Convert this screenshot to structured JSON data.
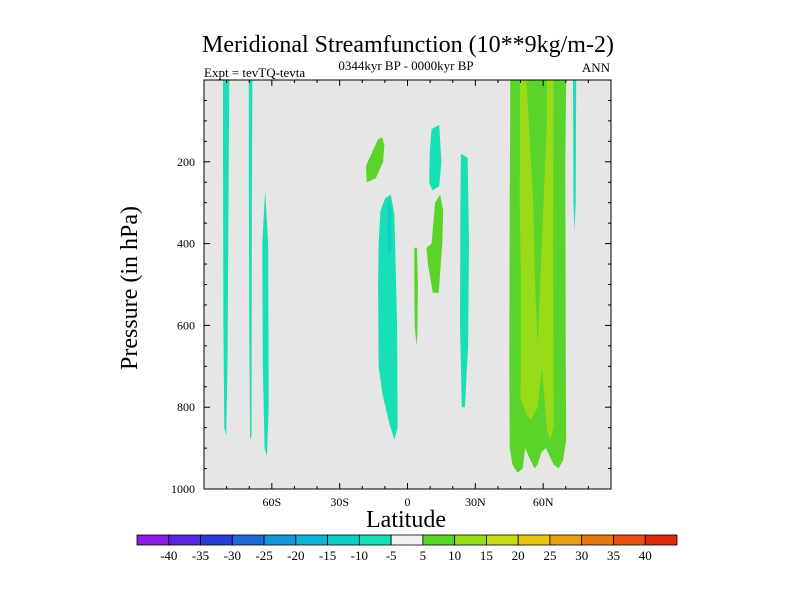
{
  "chart_data": {
    "type": "contour",
    "title": "Meridional Streamfunction (10**9kg/m-2)",
    "subtitle_left": "Expt = tevTQ-tevta",
    "subtitle_center": "0344kyr BP - 0000kyr BP",
    "subtitle_right": "ANN",
    "xlabel": "Latitude",
    "ylabel": "Pressure (in hPa)",
    "xlim": [
      -90,
      90
    ],
    "ylim": [
      1000,
      0
    ],
    "x_ticks": [
      {
        "value": -60,
        "label": "60S"
      },
      {
        "value": -30,
        "label": "30S"
      },
      {
        "value": 0,
        "label": "0"
      },
      {
        "value": 30,
        "label": "30N"
      },
      {
        "value": 60,
        "label": "60N"
      }
    ],
    "y_ticks": [
      {
        "value": 200,
        "label": "200"
      },
      {
        "value": 400,
        "label": "400"
      },
      {
        "value": 600,
        "label": "600"
      },
      {
        "value": 800,
        "label": "800"
      },
      {
        "value": 1000,
        "label": "1000"
      }
    ],
    "background_color": "#e6e6e6",
    "colorbar": {
      "levels": [
        -40,
        -35,
        -30,
        -25,
        -20,
        -15,
        -10,
        -5,
        5,
        10,
        15,
        20,
        25,
        30,
        35,
        40
      ],
      "labels": [
        "-40",
        "-35",
        "-30",
        "-25",
        "-20",
        "-15",
        "-10",
        "-5",
        "5",
        "10",
        "15",
        "20",
        "25",
        "30",
        "35",
        "40"
      ],
      "colors": [
        "#8c1fe6",
        "#5a28dc",
        "#2a3cd6",
        "#1f6ad6",
        "#1594da",
        "#12b4d6",
        "#12ccc6",
        "#17e0b4",
        "#f2f2f2",
        "#5ad42a",
        "#98dc19",
        "#c8dc19",
        "#e6c814",
        "#e6a014",
        "#e67814",
        "#e65014",
        "#dc2a0f"
      ]
    },
    "contour_regions": [
      {
        "name": "cell-65s-west",
        "band": "-10 to -5",
        "color": "#17e0b4",
        "points": [
          [
            -81.6,
            0
          ],
          [
            -78.8,
            0
          ],
          [
            -79,
            140
          ],
          [
            -79.6,
            700
          ],
          [
            -80.2,
            870
          ],
          [
            -81,
            850
          ],
          [
            -81.4,
            600
          ],
          [
            -81.6,
            200
          ]
        ]
      },
      {
        "name": "cell-65s-mid",
        "band": "-10 to -5",
        "color": "#17e0b4",
        "points": [
          [
            -70.2,
            0
          ],
          [
            -68.6,
            0
          ],
          [
            -68.8,
            300
          ],
          [
            -69,
            870
          ],
          [
            -69.6,
            880
          ],
          [
            -70,
            600
          ],
          [
            -70.2,
            200
          ]
        ]
      },
      {
        "name": "cell-60s",
        "band": "-10 to -5",
        "color": "#17e0b4",
        "points": [
          [
            -63,
            270
          ],
          [
            -61.6,
            400
          ],
          [
            -61.4,
            800
          ],
          [
            -62.2,
            920
          ],
          [
            -63.2,
            900
          ],
          [
            -64,
            700
          ],
          [
            -64.2,
            400
          ]
        ]
      },
      {
        "name": "cell-eq-south",
        "band": "-10 to -5",
        "color": "#17e0b4",
        "points": [
          [
            -10,
            290
          ],
          [
            -7.4,
            280
          ],
          [
            -5.8,
            330
          ],
          [
            -4.6,
            600
          ],
          [
            -4.4,
            850
          ],
          [
            -5.8,
            880
          ],
          [
            -8,
            840
          ],
          [
            -11,
            770
          ],
          [
            -12.8,
            700
          ],
          [
            -13,
            500
          ],
          [
            -12.8,
            400
          ],
          [
            -12,
            320
          ]
        ]
      },
      {
        "name": "cell-eq-south-core",
        "band": "-15 to -10",
        "color": "#12ccc6",
        "points": [
          [
            -8.4,
            290
          ],
          [
            -7,
            320
          ],
          [
            -7.2,
            420
          ],
          [
            -8.4,
            430
          ],
          [
            -9,
            360
          ]
        ]
      },
      {
        "name": "cell-10n",
        "band": "-10 to -5",
        "color": "#17e0b4",
        "points": [
          [
            10.6,
            120
          ],
          [
            14,
            110
          ],
          [
            15,
            200
          ],
          [
            14,
            260
          ],
          [
            11,
            270
          ],
          [
            9.6,
            250
          ],
          [
            9.8,
            180
          ]
        ]
      },
      {
        "name": "cell-25n",
        "band": "-10 to -5",
        "color": "#17e0b4",
        "points": [
          [
            23.6,
            180
          ],
          [
            26.6,
            190
          ],
          [
            27.2,
            400
          ],
          [
            26.8,
            650
          ],
          [
            25.4,
            800
          ],
          [
            24,
            800
          ],
          [
            23.2,
            600
          ],
          [
            23.4,
            300
          ]
        ]
      },
      {
        "name": "cell-70n-strip",
        "band": "-10 to -5",
        "color": "#17e0b4",
        "points": [
          [
            73.2,
            0
          ],
          [
            74.6,
            0
          ],
          [
            74.4,
            300
          ],
          [
            73.8,
            370
          ],
          [
            73.4,
            300
          ]
        ]
      },
      {
        "name": "cell-15s-upper",
        "band": "5 to 10",
        "color": "#5ad42a",
        "points": [
          [
            -18.4,
            210
          ],
          [
            -13,
            145
          ],
          [
            -11.2,
            140
          ],
          [
            -10.2,
            160
          ],
          [
            -10.8,
            200
          ],
          [
            -14,
            240
          ],
          [
            -18,
            250
          ]
        ]
      },
      {
        "name": "cell-eq-north",
        "band": "5 to 10",
        "color": "#5ad42a",
        "points": [
          [
            8.4,
            410
          ],
          [
            10.6,
            400
          ],
          [
            11.4,
            350
          ],
          [
            12.2,
            300
          ],
          [
            14.4,
            280
          ],
          [
            15.8,
            320
          ],
          [
            15.4,
            400
          ],
          [
            13.8,
            520
          ],
          [
            11.2,
            520
          ],
          [
            9,
            450
          ]
        ]
      },
      {
        "name": "cell-eq-tongue",
        "band": "5 to 10",
        "color": "#5ad42a",
        "points": [
          [
            3,
            410
          ],
          [
            4.2,
            410
          ],
          [
            4.6,
            500
          ],
          [
            4.4,
            620
          ],
          [
            4,
            650
          ],
          [
            3.2,
            600
          ],
          [
            3,
            500
          ]
        ]
      },
      {
        "name": "cell-50n-70n",
        "band": "5 to 10",
        "color": "#5ad42a",
        "points": [
          [
            45.4,
            0
          ],
          [
            70.2,
            0
          ],
          [
            69.8,
            200
          ],
          [
            70,
            700
          ],
          [
            70.2,
            880
          ],
          [
            68.8,
            930
          ],
          [
            66.8,
            950
          ],
          [
            64.6,
            940
          ],
          [
            61.2,
            900
          ],
          [
            59.2,
            910
          ],
          [
            57.6,
            940
          ],
          [
            56.2,
            950
          ],
          [
            54.4,
            930
          ],
          [
            52,
            900
          ],
          [
            51,
            950
          ],
          [
            48.6,
            960
          ],
          [
            46.4,
            940
          ],
          [
            45.2,
            900
          ],
          [
            45,
            700
          ],
          [
            45.2,
            300
          ],
          [
            45.4,
            100
          ]
        ]
      },
      {
        "name": "cell-50n-70n-core",
        "band": "10 to 15",
        "color": "#98dc19",
        "points": [
          [
            49.8,
            0
          ],
          [
            52.6,
            0
          ],
          [
            55.6,
            300
          ],
          [
            56.4,
            500
          ],
          [
            57.6,
            650
          ],
          [
            59.8,
            350
          ],
          [
            61.6,
            100
          ],
          [
            61.6,
            0
          ],
          [
            64.6,
            0
          ],
          [
            64.4,
            400
          ],
          [
            64.6,
            850
          ],
          [
            63,
            880
          ],
          [
            61.8,
            860
          ],
          [
            59.4,
            700
          ],
          [
            57.6,
            800
          ],
          [
            54.6,
            830
          ],
          [
            52.8,
            820
          ],
          [
            50,
            780
          ],
          [
            50.2,
            500
          ],
          [
            49.6,
            300
          ]
        ]
      }
    ]
  }
}
